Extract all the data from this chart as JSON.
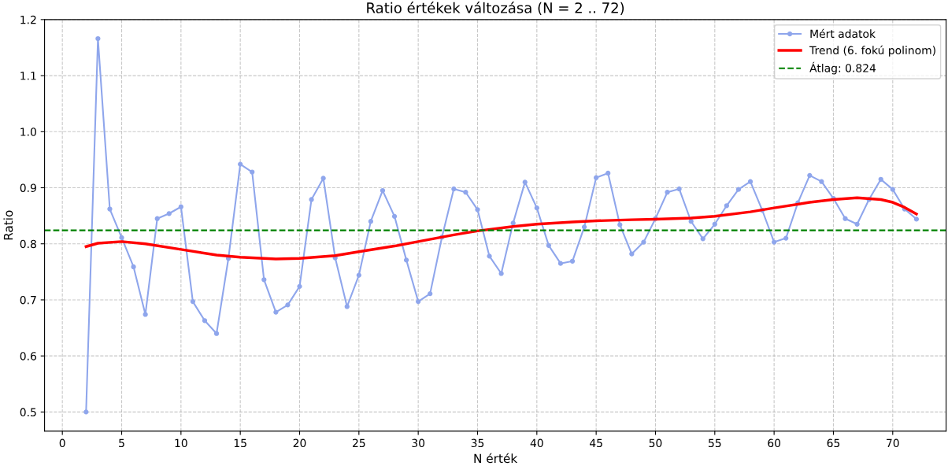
{
  "chart_data": {
    "type": "line",
    "title": "Ratio értékek változása (N = 2 .. 72)",
    "xlabel": "N érték",
    "ylabel": "Ratio",
    "xlim": [
      -1.5,
      74.5
    ],
    "xticks": [
      0,
      5,
      10,
      15,
      20,
      25,
      30,
      35,
      40,
      45,
      50,
      55,
      60,
      65,
      70
    ],
    "ylim": [
      0.466,
      1.2
    ],
    "yticks": [
      0.5,
      0.6,
      0.7,
      0.8,
      0.9,
      {
        "value": 1.0,
        "label": "1.0"
      },
      1.1,
      1.2
    ],
    "grid": true,
    "legend": "top right",
    "series": [
      {
        "name": "Mért adatok",
        "color": "#8fa6ec",
        "marker": "circle",
        "line_style": "solid",
        "x": [
          2,
          3,
          4,
          5,
          6,
          7,
          8,
          9,
          10,
          11,
          12,
          13,
          14,
          15,
          16,
          17,
          18,
          19,
          20,
          21,
          22,
          23,
          24,
          25,
          26,
          27,
          28,
          29,
          30,
          31,
          32,
          33,
          34,
          35,
          36,
          37,
          38,
          39,
          40,
          41,
          42,
          43,
          44,
          45,
          46,
          47,
          48,
          49,
          50,
          51,
          52,
          53,
          54,
          55,
          56,
          57,
          58,
          59,
          60,
          61,
          62,
          63,
          64,
          65,
          66,
          67,
          68,
          69,
          70,
          71,
          72
        ],
        "values": [
          0.5,
          1.166,
          0.862,
          0.811,
          0.759,
          0.674,
          0.845,
          0.854,
          0.866,
          0.697,
          0.663,
          0.64,
          0.774,
          0.942,
          0.928,
          0.736,
          0.678,
          0.691,
          0.724,
          0.879,
          0.917,
          0.775,
          0.688,
          0.744,
          0.84,
          0.895,
          0.849,
          0.771,
          0.697,
          0.711,
          0.812,
          0.898,
          0.892,
          0.861,
          0.778,
          0.747,
          0.837,
          0.91,
          0.864,
          0.797,
          0.765,
          0.769,
          0.83,
          0.918,
          0.926,
          0.834,
          0.782,
          0.803,
          0.845,
          0.892,
          0.898,
          0.84,
          0.809,
          0.835,
          0.868,
          0.897,
          0.911,
          0.86,
          0.803,
          0.81,
          0.873,
          0.922,
          0.911,
          0.881,
          0.845,
          0.835,
          0.879,
          0.915,
          0.897,
          0.862,
          0.844
        ]
      },
      {
        "name": "Trend (6. fokú polinom)",
        "color": "#ff0000",
        "marker": "none",
        "line_style": "solid",
        "x": [
          2,
          3,
          5,
          7,
          10,
          13,
          15,
          18,
          20,
          23,
          25,
          28,
          30,
          33,
          35,
          38,
          40,
          43,
          45,
          48,
          50,
          53,
          55,
          58,
          60,
          63,
          65,
          67,
          69,
          70,
          71,
          72
        ],
        "values": [
          0.795,
          0.801,
          0.804,
          0.8,
          0.79,
          0.78,
          0.776,
          0.773,
          0.774,
          0.779,
          0.786,
          0.796,
          0.804,
          0.816,
          0.823,
          0.831,
          0.835,
          0.839,
          0.841,
          0.843,
          0.844,
          0.846,
          0.849,
          0.857,
          0.864,
          0.874,
          0.879,
          0.882,
          0.879,
          0.874,
          0.865,
          0.853
        ]
      }
    ],
    "ref_lines": [
      {
        "axis": "y",
        "value": 0.824,
        "label": "Átlag: 0.824",
        "color": "#008000",
        "line_style": "dashed"
      }
    ]
  }
}
